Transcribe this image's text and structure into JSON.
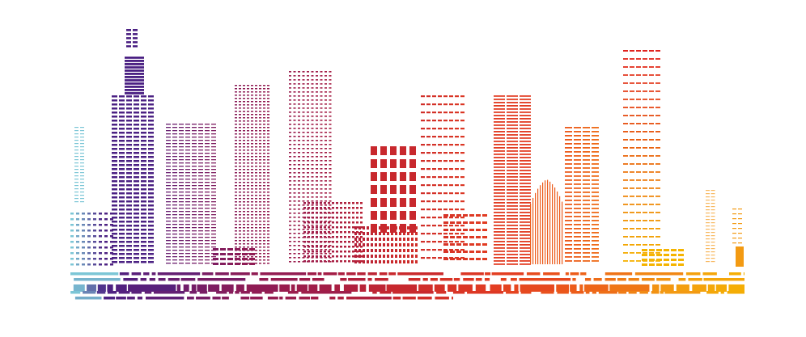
{
  "illustration": {
    "subject": "city-skyline",
    "palette": {
      "light_blue": "#7cc6d6",
      "purple": "#4b2183",
      "plum": "#6a1e6f",
      "magenta": "#8e1c55",
      "crimson": "#a31d46",
      "red": "#c8282d",
      "red_orange": "#e23c22",
      "orange": "#ec5a1a",
      "amber": "#f39a12",
      "yellow": "#f5b400"
    }
  }
}
